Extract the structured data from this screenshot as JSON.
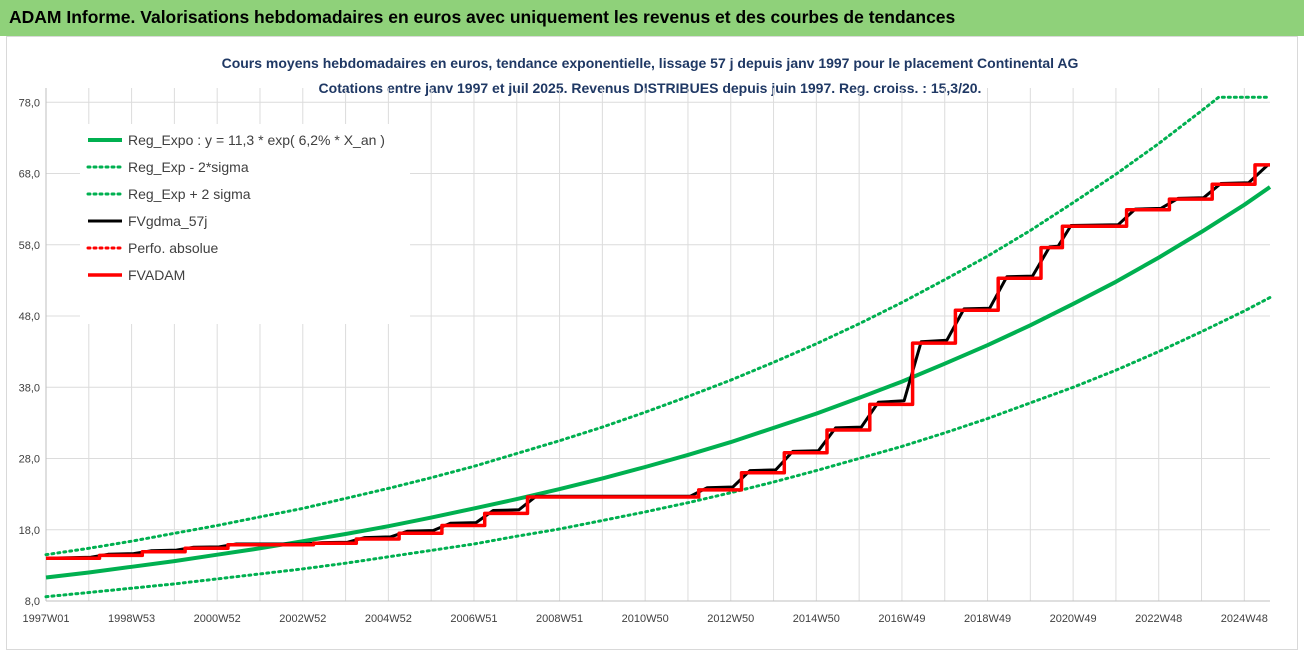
{
  "header": {
    "title": "ADAM Informe. Valorisations hebdomadaires en euros avec uniquement les revenus et des courbes de tendances"
  },
  "chart_data": {
    "type": "line",
    "title": "Cours moyens hebdomadaires en euros, tendance exponentielle, lissage 57 j depuis janv 1997 pour le placement Continental AG",
    "subtitle": "Cotations entre janv 1997 et juil 2025. Revenus DISTRIBUES depuis juin 1997. Reg. croiss. : 15,3/20.",
    "xlabel": "",
    "ylabel": "",
    "ylim": [
      8,
      80
    ],
    "xlim": [
      1997.0,
      2025.6
    ],
    "y_ticks": [
      "8,0",
      "18,0",
      "28,0",
      "38,0",
      "48,0",
      "58,0",
      "68,0",
      "78,0"
    ],
    "x_ticks": [
      {
        "label": "1997W01",
        "x": 1997.0
      },
      {
        "label": "1998W53",
        "x": 1999.0
      },
      {
        "label": "2000W52",
        "x": 2001.0
      },
      {
        "label": "2002W52",
        "x": 2003.0
      },
      {
        "label": "2004W52",
        "x": 2005.0
      },
      {
        "label": "2006W51",
        "x": 2007.0
      },
      {
        "label": "2008W51",
        "x": 2009.0
      },
      {
        "label": "2010W50",
        "x": 2011.0
      },
      {
        "label": "2012W50",
        "x": 2013.0
      },
      {
        "label": "2014W50",
        "x": 2015.0
      },
      {
        "label": "2016W49",
        "x": 2017.0
      },
      {
        "label": "2018W49",
        "x": 2019.0
      },
      {
        "label": "2020W49",
        "x": 2021.0
      },
      {
        "label": "2022W48",
        "x": 2023.0
      },
      {
        "label": "2024W48",
        "x": 2025.0
      }
    ],
    "grid": true,
    "legend_position": "top-left",
    "colors": {
      "green": "#00b050",
      "black": "#000000",
      "red": "#ff0000",
      "title": "#1f3864"
    },
    "regression": {
      "a": 11.3,
      "rate": 0.062,
      "x0": 1997.0
    },
    "series": [
      {
        "name": "Reg_Expo : y = 11,3 * exp( 6,2% *  X_an )",
        "style": "solid",
        "color": "#00b050",
        "width": 4,
        "points": [
          [
            1997.0,
            11.3
          ],
          [
            1998.0,
            12.0
          ],
          [
            1999.0,
            12.8
          ],
          [
            2000.0,
            13.6
          ],
          [
            2001.0,
            14.5
          ],
          [
            2002.0,
            15.4
          ],
          [
            2003.0,
            16.4
          ],
          [
            2004.0,
            17.4
          ],
          [
            2005.0,
            18.5
          ],
          [
            2006.0,
            19.7
          ],
          [
            2007.0,
            21.0
          ],
          [
            2008.0,
            22.3
          ],
          [
            2009.0,
            23.7
          ],
          [
            2010.0,
            25.2
          ],
          [
            2011.0,
            26.8
          ],
          [
            2012.0,
            28.5
          ],
          [
            2013.0,
            30.3
          ],
          [
            2014.0,
            32.3
          ],
          [
            2015.0,
            34.3
          ],
          [
            2016.0,
            36.5
          ],
          [
            2017.0,
            38.8
          ],
          [
            2018.0,
            41.3
          ],
          [
            2019.0,
            43.9
          ],
          [
            2020.0,
            46.7
          ],
          [
            2021.0,
            49.7
          ],
          [
            2022.0,
            52.8
          ],
          [
            2023.0,
            56.2
          ],
          [
            2024.0,
            59.8
          ],
          [
            2025.0,
            63.6
          ],
          [
            2025.6,
            66.1
          ]
        ]
      },
      {
        "name": "Reg_Exp - 2*sigma",
        "style": "dotted",
        "color": "#00b050",
        "width": 3,
        "points": [
          [
            1997.0,
            8.6
          ],
          [
            1998.0,
            9.2
          ],
          [
            1999.0,
            9.8
          ],
          [
            2000.0,
            10.4
          ],
          [
            2001.0,
            11.1
          ],
          [
            2002.0,
            11.8
          ],
          [
            2003.0,
            12.5
          ],
          [
            2004.0,
            13.3
          ],
          [
            2005.0,
            14.2
          ],
          [
            2006.0,
            15.1
          ],
          [
            2007.0,
            16.0
          ],
          [
            2008.0,
            17.1
          ],
          [
            2009.0,
            18.1
          ],
          [
            2010.0,
            19.3
          ],
          [
            2011.0,
            20.5
          ],
          [
            2012.0,
            21.8
          ],
          [
            2013.0,
            23.2
          ],
          [
            2014.0,
            24.7
          ],
          [
            2015.0,
            26.3
          ],
          [
            2016.0,
            28.0
          ],
          [
            2017.0,
            29.7
          ],
          [
            2018.0,
            31.6
          ],
          [
            2019.0,
            33.6
          ],
          [
            2020.0,
            35.8
          ],
          [
            2021.0,
            38.0
          ],
          [
            2022.0,
            40.4
          ],
          [
            2023.0,
            43.0
          ],
          [
            2024.0,
            45.8
          ],
          [
            2025.0,
            48.7
          ],
          [
            2025.6,
            50.6
          ]
        ]
      },
      {
        "name": "Reg_Exp + 2 sigma",
        "style": "dotted",
        "color": "#00b050",
        "width": 3,
        "points": [
          [
            1997.0,
            14.5
          ],
          [
            1998.0,
            15.4
          ],
          [
            1999.0,
            16.4
          ],
          [
            2000.0,
            17.5
          ],
          [
            2001.0,
            18.6
          ],
          [
            2002.0,
            19.8
          ],
          [
            2003.0,
            21.0
          ],
          [
            2004.0,
            22.4
          ],
          [
            2005.0,
            23.8
          ],
          [
            2006.0,
            25.3
          ],
          [
            2007.0,
            26.9
          ],
          [
            2008.0,
            28.7
          ],
          [
            2009.0,
            30.5
          ],
          [
            2010.0,
            32.4
          ],
          [
            2011.0,
            34.5
          ],
          [
            2012.0,
            36.7
          ],
          [
            2013.0,
            39.0
          ],
          [
            2014.0,
            41.5
          ],
          [
            2015.0,
            44.1
          ],
          [
            2016.0,
            46.9
          ],
          [
            2017.0,
            49.9
          ],
          [
            2018.0,
            53.1
          ],
          [
            2019.0,
            56.4
          ],
          [
            2020.0,
            60.0
          ],
          [
            2021.0,
            63.9
          ],
          [
            2022.0,
            67.9
          ],
          [
            2023.0,
            72.2
          ],
          [
            2024.0,
            76.8
          ],
          [
            2024.4,
            78.7
          ],
          [
            2025.6,
            78.7
          ]
        ]
      },
      {
        "name": "FVgdma_57j",
        "style": "solid",
        "color": "#000000",
        "width": 3,
        "points": [
          [
            1997.0,
            14.0
          ],
          [
            1998.05,
            14.15
          ],
          [
            1998.45,
            14.55
          ],
          [
            1999.05,
            14.65
          ],
          [
            1999.45,
            15.05
          ],
          [
            2000.05,
            15.15
          ],
          [
            2000.45,
            15.55
          ],
          [
            2001.05,
            15.6
          ],
          [
            2001.45,
            16.0
          ],
          [
            2003.05,
            16.0
          ],
          [
            2003.45,
            16.2
          ],
          [
            2004.05,
            16.25
          ],
          [
            2004.45,
            16.9
          ],
          [
            2005.05,
            17.0
          ],
          [
            2005.45,
            17.8
          ],
          [
            2006.05,
            17.9
          ],
          [
            2006.45,
            18.9
          ],
          [
            2007.05,
            19.0
          ],
          [
            2007.45,
            20.7
          ],
          [
            2008.05,
            20.8
          ],
          [
            2008.45,
            22.7
          ],
          [
            2012.05,
            22.7
          ],
          [
            2012.45,
            23.9
          ],
          [
            2013.05,
            24.0
          ],
          [
            2013.45,
            26.3
          ],
          [
            2014.05,
            26.4
          ],
          [
            2014.45,
            29.0
          ],
          [
            2015.05,
            29.1
          ],
          [
            2015.45,
            32.3
          ],
          [
            2016.05,
            32.4
          ],
          [
            2016.45,
            35.9
          ],
          [
            2017.05,
            36.1
          ],
          [
            2017.45,
            44.4
          ],
          [
            2018.05,
            44.6
          ],
          [
            2018.45,
            49.0
          ],
          [
            2019.05,
            49.1
          ],
          [
            2019.45,
            53.5
          ],
          [
            2020.05,
            53.6
          ],
          [
            2020.45,
            57.7
          ],
          [
            2020.65,
            57.8
          ],
          [
            2020.95,
            60.7
          ],
          [
            2022.05,
            60.8
          ],
          [
            2022.45,
            63.0
          ],
          [
            2023.05,
            63.1
          ],
          [
            2023.45,
            64.5
          ],
          [
            2024.05,
            64.6
          ],
          [
            2024.45,
            66.6
          ],
          [
            2025.1,
            66.7
          ],
          [
            2025.55,
            69.2
          ]
        ]
      },
      {
        "name": "Perfo. absolue",
        "style": "dotted",
        "color": "#ff0000",
        "width": 3,
        "points": []
      },
      {
        "name": "FVADAM",
        "style": "solid",
        "color": "#ff0000",
        "width": 3.5,
        "points": [
          [
            1997.0,
            14.0
          ],
          [
            1998.25,
            14.0
          ],
          [
            1998.25,
            14.4
          ],
          [
            1999.25,
            14.4
          ],
          [
            1999.25,
            14.9
          ],
          [
            2000.25,
            14.9
          ],
          [
            2000.25,
            15.4
          ],
          [
            2001.25,
            15.4
          ],
          [
            2001.25,
            15.9
          ],
          [
            2003.25,
            15.9
          ],
          [
            2003.25,
            16.1
          ],
          [
            2004.25,
            16.1
          ],
          [
            2004.25,
            16.7
          ],
          [
            2005.25,
            16.7
          ],
          [
            2005.25,
            17.5
          ],
          [
            2006.25,
            17.5
          ],
          [
            2006.25,
            18.6
          ],
          [
            2007.25,
            18.6
          ],
          [
            2007.25,
            20.3
          ],
          [
            2008.25,
            20.3
          ],
          [
            2008.25,
            22.6
          ],
          [
            2012.25,
            22.6
          ],
          [
            2012.25,
            23.6
          ],
          [
            2013.25,
            23.6
          ],
          [
            2013.25,
            26.0
          ],
          [
            2014.25,
            26.0
          ],
          [
            2014.25,
            28.8
          ],
          [
            2015.25,
            28.8
          ],
          [
            2015.25,
            32.0
          ],
          [
            2016.25,
            32.0
          ],
          [
            2016.25,
            35.6
          ],
          [
            2017.25,
            35.6
          ],
          [
            2017.25,
            44.2
          ],
          [
            2018.25,
            44.2
          ],
          [
            2018.25,
            48.8
          ],
          [
            2019.25,
            48.8
          ],
          [
            2019.25,
            53.3
          ],
          [
            2020.25,
            53.3
          ],
          [
            2020.25,
            57.6
          ],
          [
            2020.75,
            57.6
          ],
          [
            2020.75,
            60.6
          ],
          [
            2022.25,
            60.6
          ],
          [
            2022.25,
            62.9
          ],
          [
            2023.25,
            62.9
          ],
          [
            2023.25,
            64.4
          ],
          [
            2024.25,
            64.4
          ],
          [
            2024.25,
            66.5
          ],
          [
            2025.25,
            66.5
          ],
          [
            2025.25,
            69.2
          ],
          [
            2025.6,
            69.2
          ]
        ]
      }
    ]
  }
}
